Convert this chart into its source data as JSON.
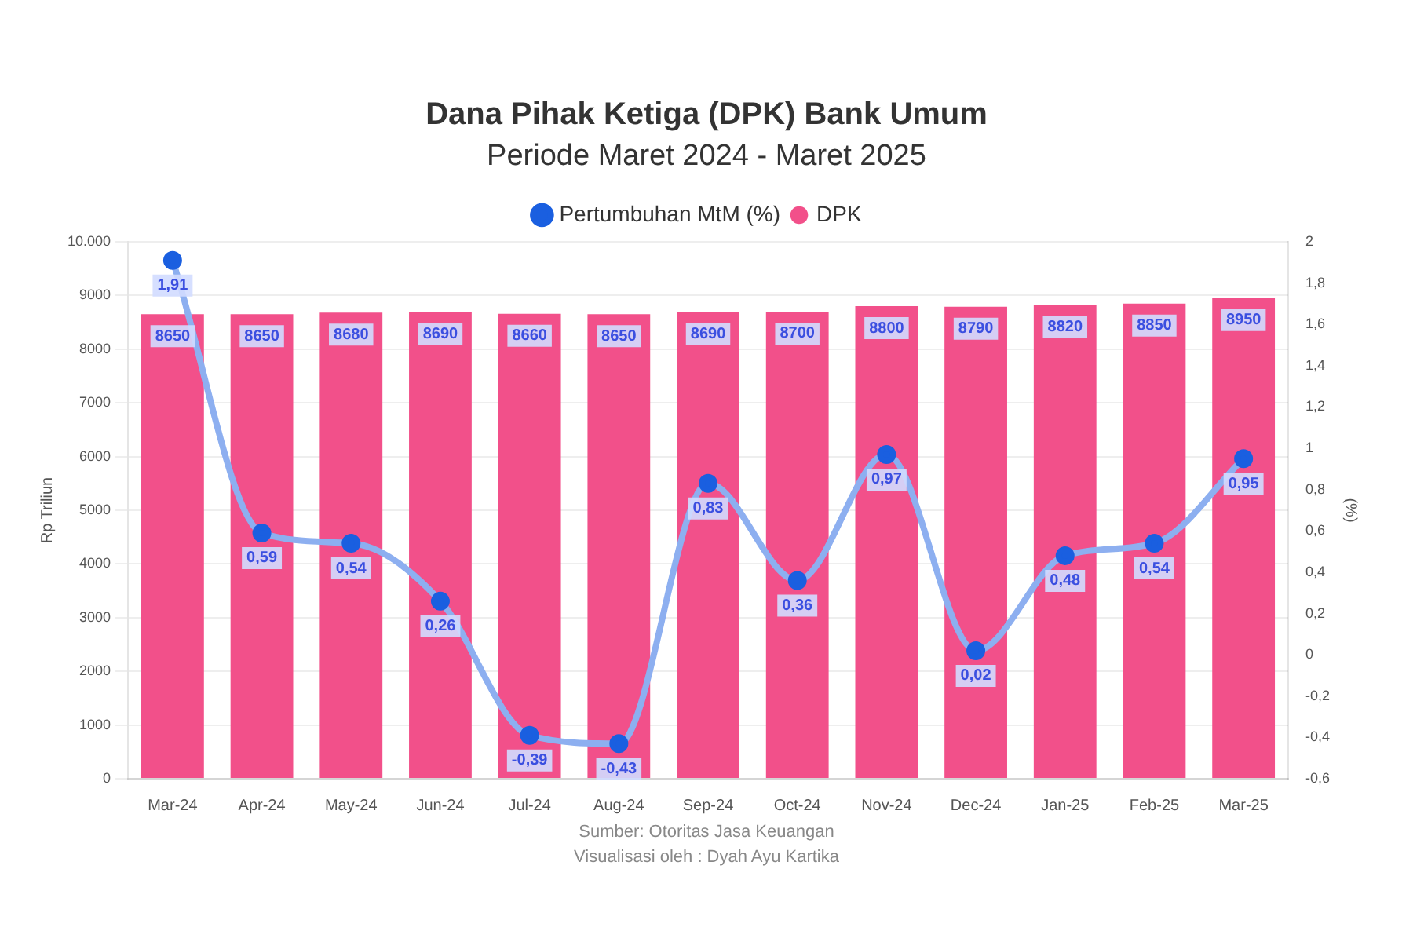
{
  "chart_data": {
    "type": "bar",
    "title": "Dana Pihak Ketiga (DPK) Bank Umum",
    "subtitle": "Periode Maret 2024 - Maret 2025",
    "categories": [
      "Mar-24",
      "Apr-24",
      "May-24",
      "Jun-24",
      "Jul-24",
      "Aug-24",
      "Sep-24",
      "Oct-24",
      "Nov-24",
      "Dec-24",
      "Jan-25",
      "Feb-25",
      "Mar-25"
    ],
    "series": [
      {
        "name": "Pertumbuhan MtM (%)",
        "type": "line",
        "axis": "y2",
        "color": "#1a5fe0",
        "values": [
          1.91,
          0.59,
          0.54,
          0.26,
          -0.39,
          -0.43,
          0.83,
          0.36,
          0.97,
          0.02,
          0.48,
          0.54,
          0.95
        ],
        "value_labels": [
          "1,91",
          "0,59",
          "0,54",
          "0,26",
          "-0,39",
          "-0,43",
          "0,83",
          "0,36",
          "0,97",
          "0,02",
          "0,48",
          "0,54",
          "0,95"
        ]
      },
      {
        "name": "DPK",
        "color": "#f2508a",
        "values": [
          8650,
          8650,
          8680,
          8690,
          8660,
          8650,
          8690,
          8700,
          8800,
          8790,
          8820,
          8850,
          8950
        ],
        "value_labels": [
          "8650",
          "8650",
          "8680",
          "8690",
          "8660",
          "8650",
          "8690",
          "8700",
          "8800",
          "8790",
          "8820",
          "8850",
          "8950"
        ]
      }
    ],
    "ylabel": "Rp Triliun",
    "y2label": "(%)",
    "ylim": [
      0,
      10000
    ],
    "yticks": [
      0,
      1000,
      2000,
      3000,
      4000,
      5000,
      6000,
      7000,
      8000,
      9000,
      {
        "value": 10000,
        "label": "10.000"
      }
    ],
    "y2lim": [
      -0.6,
      2
    ],
    "y2ticks": [
      {
        "value": -0.6,
        "label": "-0,6"
      },
      {
        "value": -0.4,
        "label": "-0,4"
      },
      {
        "value": -0.2,
        "label": "-0,2"
      },
      0,
      {
        "value": 0.2,
        "label": "0,2"
      },
      {
        "value": 0.4,
        "label": "0,4"
      },
      {
        "value": 0.6,
        "label": "0,6"
      },
      {
        "value": 0.8,
        "label": "0,8"
      },
      1,
      {
        "value": 1.2,
        "label": "1,2"
      },
      {
        "value": 1.4,
        "label": "1,4"
      },
      {
        "value": 1.6,
        "label": "1,6"
      },
      {
        "value": 1.8,
        "label": "1,8"
      },
      2
    ],
    "grid": "y",
    "legend": "top",
    "marker": "circle",
    "annotations": [
      "Sumber: Otoritas Jasa Keuangan",
      "Visualisasi oleh : Dyah Ayu Kartika"
    ]
  }
}
